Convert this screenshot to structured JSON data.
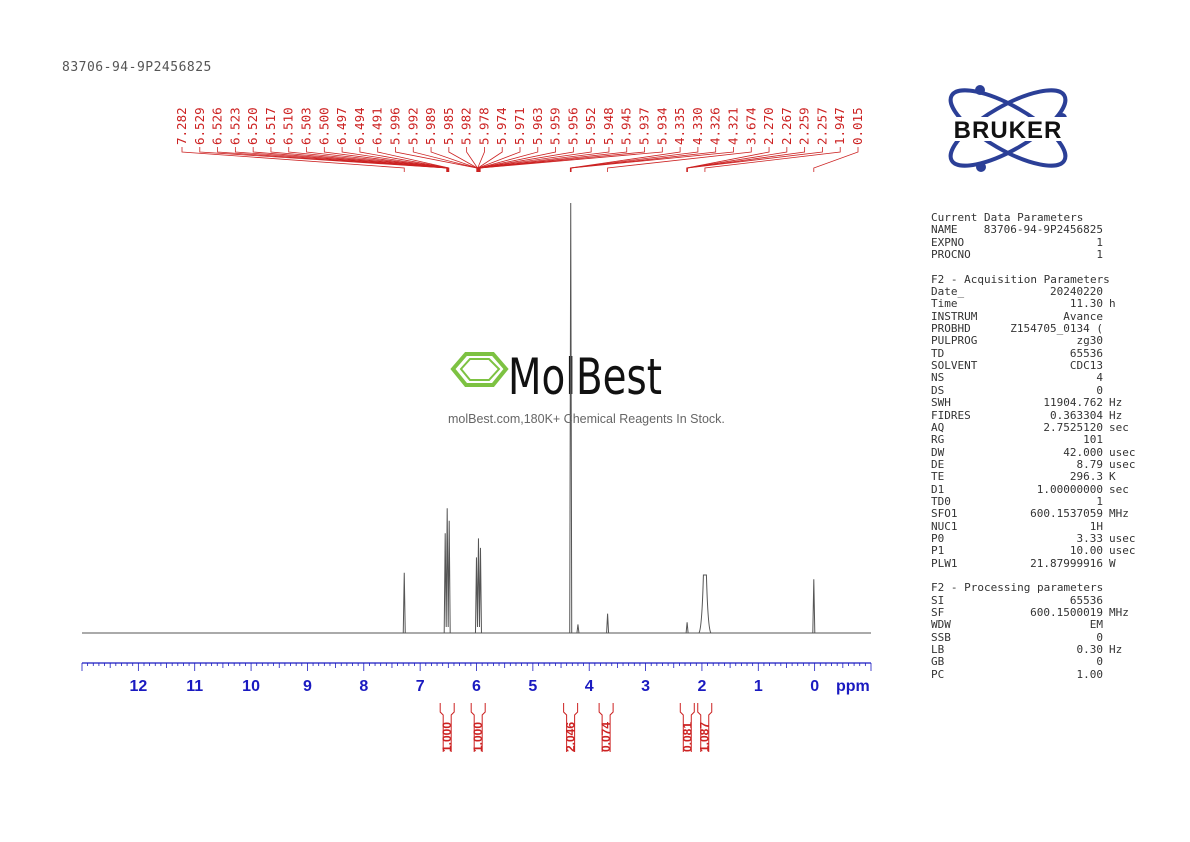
{
  "sample_id": "83706-94-9P2456825",
  "brand": {
    "logo_text": "BRUKER"
  },
  "watermark": {
    "brand": "MolBest",
    "tagline": "molBest.com,180K+ Chemical Reagents In Stock."
  },
  "colors": {
    "peak_label": "#cc2222",
    "axis": "#1a1ac0",
    "integral": "#cc2222",
    "spectrum": "#555555",
    "bruker_blue": "#2b3f97",
    "molbest_green": "#7dc242"
  },
  "parameters": {
    "sections": [
      {
        "title": "Current Data Parameters",
        "rows": [
          {
            "key": "NAME",
            "value": "83706-94-9P2456825",
            "unit": ""
          },
          {
            "key": "EXPNO",
            "value": "1",
            "unit": ""
          },
          {
            "key": "PROCNO",
            "value": "1",
            "unit": ""
          }
        ]
      },
      {
        "title": "F2 - Acquisition Parameters",
        "rows": [
          {
            "key": "Date_",
            "value": "20240220",
            "unit": ""
          },
          {
            "key": "Time",
            "value": "11.30",
            "unit": "h"
          },
          {
            "key": "INSTRUM",
            "value": "Avance",
            "unit": ""
          },
          {
            "key": "PROBHD",
            "value": "Z154705_0134 (",
            "unit": ""
          },
          {
            "key": "PULPROG",
            "value": "zg30",
            "unit": ""
          },
          {
            "key": "TD",
            "value": "65536",
            "unit": ""
          },
          {
            "key": "SOLVENT",
            "value": "CDC13",
            "unit": ""
          },
          {
            "key": "NS",
            "value": "4",
            "unit": ""
          },
          {
            "key": "DS",
            "value": "0",
            "unit": ""
          },
          {
            "key": "SWH",
            "value": "11904.762",
            "unit": "Hz"
          },
          {
            "key": "FIDRES",
            "value": "0.363304",
            "unit": "Hz"
          },
          {
            "key": "AQ",
            "value": "2.7525120",
            "unit": "sec"
          },
          {
            "key": "RG",
            "value": "101",
            "unit": ""
          },
          {
            "key": "DW",
            "value": "42.000",
            "unit": "usec"
          },
          {
            "key": "DE",
            "value": "8.79",
            "unit": "usec"
          },
          {
            "key": "TE",
            "value": "296.3",
            "unit": "K"
          },
          {
            "key": "D1",
            "value": "1.00000000",
            "unit": "sec"
          },
          {
            "key": "TD0",
            "value": "1",
            "unit": ""
          },
          {
            "key": "SFO1",
            "value": "600.1537059",
            "unit": "MHz"
          },
          {
            "key": "NUC1",
            "value": "1H",
            "unit": ""
          },
          {
            "key": "P0",
            "value": "3.33",
            "unit": "usec"
          },
          {
            "key": "P1",
            "value": "10.00",
            "unit": "usec"
          },
          {
            "key": "PLW1",
            "value": "21.87999916",
            "unit": "W"
          }
        ]
      },
      {
        "title": "F2 - Processing parameters",
        "rows": [
          {
            "key": "SI",
            "value": "65536",
            "unit": ""
          },
          {
            "key": "SF",
            "value": "600.1500019",
            "unit": "MHz"
          },
          {
            "key": "WDW",
            "value": "EM",
            "unit": ""
          },
          {
            "key": "SSB",
            "value": "0",
            "unit": ""
          },
          {
            "key": "LB",
            "value": "0.30",
            "unit": "Hz"
          },
          {
            "key": "GB",
            "value": "0",
            "unit": ""
          },
          {
            "key": "PC",
            "value": "1.00",
            "unit": ""
          }
        ]
      }
    ]
  },
  "chart_data": {
    "type": "line",
    "xlabel": "ppm",
    "xlim": [
      13.0,
      -1.0
    ],
    "x_direction": "reversed",
    "x_ticks": [
      12,
      11,
      10,
      9,
      8,
      7,
      6,
      5,
      4,
      3,
      2,
      1,
      0
    ],
    "peak_labels": [
      "7.282",
      "6.529",
      "6.526",
      "6.523",
      "6.520",
      "6.517",
      "6.510",
      "6.503",
      "6.500",
      "6.497",
      "6.494",
      "6.491",
      "5.996",
      "5.992",
      "5.989",
      "5.985",
      "5.982",
      "5.978",
      "5.974",
      "5.971",
      "5.963",
      "5.959",
      "5.956",
      "5.952",
      "5.948",
      "5.945",
      "5.937",
      "5.934",
      "4.335",
      "4.330",
      "4.326",
      "4.321",
      "3.674",
      "2.270",
      "2.267",
      "2.259",
      "2.257",
      "1.947",
      "0.015"
    ],
    "peaks": [
      {
        "ppm": 7.282,
        "height": 0.14
      },
      {
        "ppm": 6.52,
        "height": 0.29
      },
      {
        "ppm": 5.965,
        "height": 0.22
      },
      {
        "ppm": 4.328,
        "height": 1.0
      },
      {
        "ppm": 4.2,
        "height": 0.02
      },
      {
        "ppm": 3.674,
        "height": 0.045
      },
      {
        "ppm": 2.263,
        "height": 0.025
      },
      {
        "ppm": 1.947,
        "height": 0.135
      },
      {
        "ppm": 0.015,
        "height": 0.125
      }
    ],
    "integrals": [
      {
        "ppm": 6.52,
        "value": "1.000"
      },
      {
        "ppm": 5.97,
        "value": "1.000"
      },
      {
        "ppm": 4.33,
        "value": "2.046"
      },
      {
        "ppm": 3.7,
        "value": "0.074"
      },
      {
        "ppm": 2.26,
        "value": "0.081"
      },
      {
        "ppm": 1.95,
        "value": "1.087"
      }
    ]
  }
}
